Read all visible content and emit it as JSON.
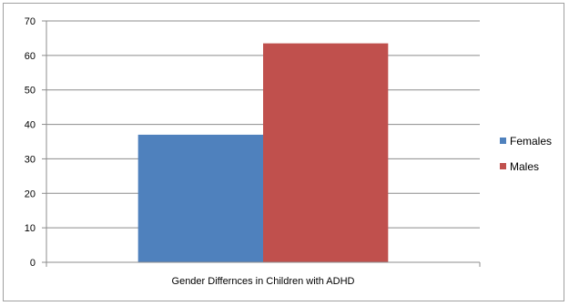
{
  "chart_data": {
    "type": "bar",
    "categories": [
      "Gender Differnces in Children with ADHD"
    ],
    "series": [
      {
        "name": "Females",
        "values": [
          37
        ],
        "color": "#4f81bd"
      },
      {
        "name": "Males",
        "values": [
          63.5
        ],
        "color": "#c0504d"
      }
    ],
    "title": "",
    "xlabel": "",
    "ylabel": "",
    "ylim": [
      0,
      70
    ],
    "yticks": [
      0,
      10,
      20,
      30,
      40,
      50,
      60,
      70
    ],
    "grid": true,
    "legend_position": "right"
  }
}
